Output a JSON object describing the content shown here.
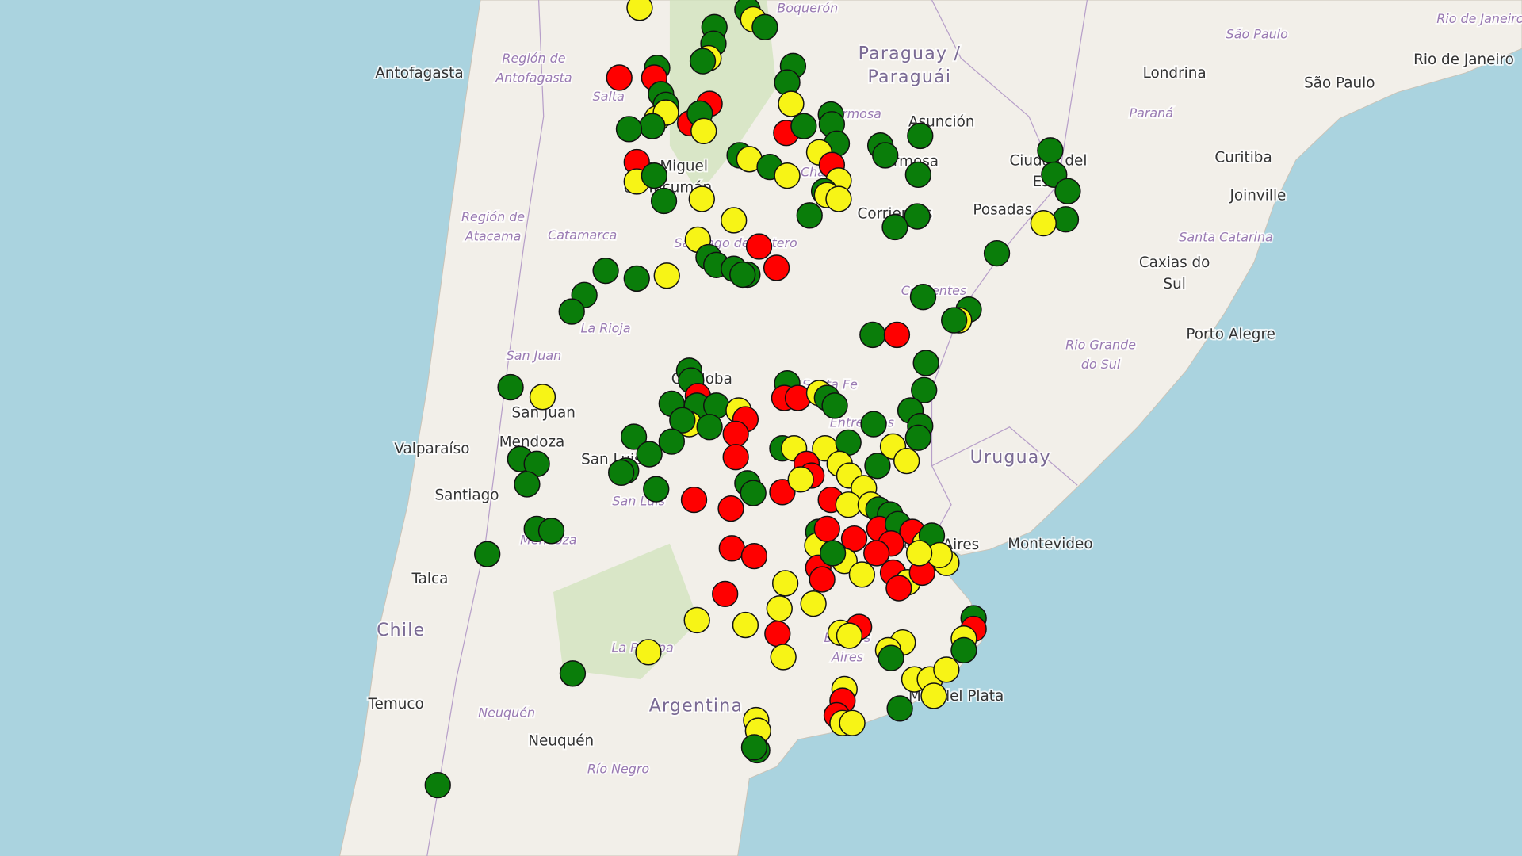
{
  "map": {
    "countries": [
      [
        "Paraguay /",
        "Paraguái"
      ],
      [
        "Uruguay"
      ],
      [
        "Chile"
      ],
      [
        "Argentina"
      ]
    ],
    "cities": [
      [
        "Antofagasta"
      ],
      [
        "Londrina"
      ],
      [
        "São Paulo"
      ],
      [
        "Rio de Janeiro"
      ],
      [
        "Asunción"
      ],
      [
        "Formosa"
      ],
      [
        "Ciudad del",
        "Este"
      ],
      [
        "Curitiba"
      ],
      [
        "Joinville"
      ],
      [
        "Posadas"
      ],
      [
        "Corrientes"
      ],
      [
        "San Miguel",
        "de Tucumán"
      ],
      [
        "Caxias do",
        "Sul"
      ],
      [
        "Porto Alegre"
      ],
      [
        "San Juan"
      ],
      [
        "Córdoba"
      ],
      [
        "Valparaíso"
      ],
      [
        "Mendoza"
      ],
      [
        "San Luis"
      ],
      [
        "Santiago"
      ],
      [
        "Buenos Aires"
      ],
      [
        "Montevideo"
      ],
      [
        "Talca"
      ],
      [
        "Temuco"
      ],
      [
        "Neuquén"
      ],
      [
        "Mar del Plata"
      ]
    ],
    "regions": [
      [
        "Boquerón"
      ],
      [
        "Región de",
        "Antofagasta"
      ],
      [
        "Salta"
      ],
      [
        "Formosa"
      ],
      [
        "São Paulo"
      ],
      [
        "Rio de Janeiro"
      ],
      [
        "Paraná"
      ],
      [
        "Región de",
        "Atacama"
      ],
      [
        "Catamarca"
      ],
      [
        "Chaco"
      ],
      [
        "Santiago del Estero"
      ],
      [
        "Santa Catarina"
      ],
      [
        "Corrientes"
      ],
      [
        "La Rioja"
      ],
      [
        "Rio Grande",
        "do Sul"
      ],
      [
        "San Juan"
      ],
      [
        "Santa Fe"
      ],
      [
        "Entre Ríos"
      ],
      [
        "San Luis"
      ],
      [
        "Mendoza"
      ],
      [
        "La Pampa"
      ],
      [
        "Buenos",
        "Aires"
      ],
      [
        "Neuquén"
      ],
      [
        "Río Negro"
      ]
    ]
  }
}
